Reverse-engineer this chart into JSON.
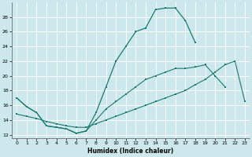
{
  "xlabel": "Humidex (Indice chaleur)",
  "bg_color": "#cce8ec",
  "grid_color": "#ffffff",
  "line_color": "#1a7a6e",
  "xlim": [
    -0.5,
    23.5
  ],
  "ylim": [
    11.5,
    30
  ],
  "yticks": [
    12,
    14,
    16,
    18,
    20,
    22,
    24,
    26,
    28
  ],
  "xticks": [
    0,
    1,
    2,
    3,
    4,
    5,
    6,
    7,
    8,
    9,
    10,
    11,
    12,
    13,
    14,
    15,
    16,
    17,
    18,
    19,
    20,
    21,
    22,
    23
  ],
  "line1_x": [
    0,
    1,
    2,
    3,
    4,
    5,
    6,
    7,
    8,
    9,
    10,
    11,
    12,
    13,
    14,
    15,
    16,
    17,
    18
  ],
  "line1_y": [
    17.0,
    15.8,
    15.0,
    13.2,
    13.0,
    12.8,
    12.2,
    12.5,
    15.0,
    18.5,
    22.0,
    24.0,
    26.0,
    26.5,
    29.0,
    29.2,
    29.2,
    27.5,
    24.5
  ],
  "line2_x": [
    0,
    1,
    2,
    3,
    4,
    5,
    6,
    7,
    8,
    9,
    10,
    11,
    12,
    13,
    14,
    15,
    16,
    17,
    18,
    19,
    20,
    21,
    22,
    23
  ],
  "line2_y": [
    14.8,
    14.5,
    14.2,
    13.8,
    13.5,
    13.2,
    13.0,
    13.0,
    13.5,
    14.0,
    14.5,
    15.0,
    15.5,
    16.0,
    16.5,
    17.0,
    17.5,
    18.0,
    18.8,
    19.5,
    20.5,
    21.5,
    22.0,
    16.5
  ],
  "line3_x": [
    0,
    1,
    2,
    3,
    4,
    5,
    6,
    7,
    8,
    9,
    10,
    11,
    12,
    13,
    14,
    15,
    16,
    17,
    18,
    19,
    20,
    21
  ],
  "line3_y": [
    17.0,
    15.8,
    15.0,
    13.2,
    13.0,
    12.8,
    12.2,
    12.5,
    14.0,
    15.5,
    16.5,
    17.5,
    18.5,
    19.5,
    20.0,
    20.5,
    21.0,
    21.0,
    21.2,
    21.5,
    20.0,
    18.5
  ]
}
